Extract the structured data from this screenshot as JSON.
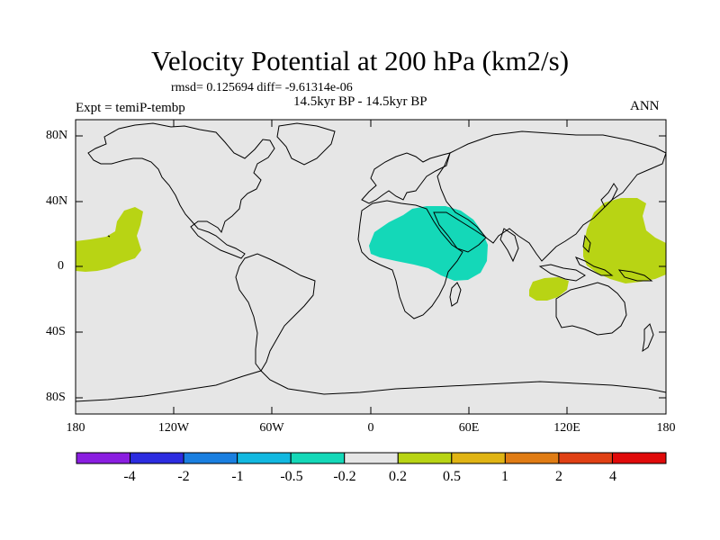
{
  "title": "Velocity Potential at 200 hPa (km2/s)",
  "stats_text": "rmsd= 0.125694 diff= -9.61314e-06",
  "period_text": "14.5kyr BP - 14.5kyr BP",
  "expt_text": "Expt = temiP-tembp",
  "season_text": "ANN",
  "y_ticks": [
    "80N",
    "40N",
    "0",
    "40S",
    "80S"
  ],
  "x_ticks": [
    "180",
    "120W",
    "60W",
    "0",
    "60E",
    "120E",
    "180"
  ],
  "colorbar": {
    "labels": [
      "-4",
      "-2",
      "-1",
      "-0.5",
      "-0.2",
      "0.2",
      "0.5",
      "1",
      "2",
      "4"
    ],
    "colors": [
      "#8a1ee0",
      "#2c2ce0",
      "#1a7fe0",
      "#12b8e0",
      "#14d8b8",
      "#e6e6e6",
      "#b8d414",
      "#e0b414",
      "#e07c14",
      "#e04014",
      "#e00a0a"
    ]
  },
  "colors": {
    "land_bg": "#e6e6e6",
    "negative_anomaly": "#14d8b8",
    "positive_anomaly": "#b8d414",
    "coast": "#000000"
  },
  "regions": [
    {
      "name": "eastern-pacific-positive",
      "level": "0.2 to 0.5"
    },
    {
      "name": "africa-arabia-negative",
      "level": "-0.5 to -0.2"
    },
    {
      "name": "western-pacific-positive",
      "level": "0.2 to 0.5"
    },
    {
      "name": "indian-ocean-positive",
      "level": "0.2 to 0.5"
    }
  ]
}
